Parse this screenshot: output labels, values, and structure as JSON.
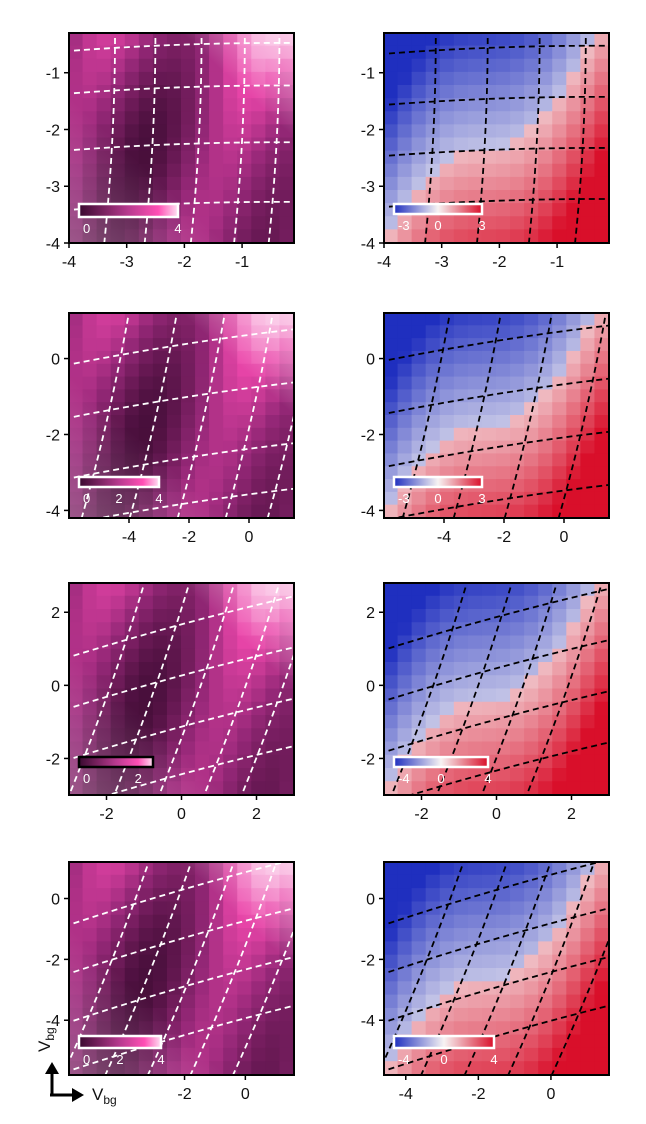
{
  "figure_axis_labels": {
    "horizontal": "V",
    "vertical": "V",
    "subscript": "bg"
  },
  "chart_data": [
    {
      "type": "heatmap",
      "colormap": "magenta",
      "xlim": [
        -4,
        -0.1
      ],
      "ylim": [
        -4,
        -0.3
      ],
      "xticks": [
        -4,
        -3,
        -2,
        -1
      ],
      "yticks": [
        -4,
        -3,
        -2,
        -1
      ],
      "colorbar": {
        "ticks": [
          "0",
          "4"
        ],
        "range": [
          0,
          4
        ]
      },
      "overlay": {
        "color": "#ffffff",
        "vertical_lines": [
          -3.3,
          -2.6,
          -1.8,
          -1.05,
          -0.45
        ],
        "horizontal_lines": [
          -0.55,
          -1.3,
          -2.3,
          -3.35
        ],
        "skew_x": 0.05,
        "skew_y": -0.04
      }
    },
    {
      "type": "heatmap",
      "colormap": "diverging",
      "xlim": [
        -4,
        -0.1
      ],
      "ylim": [
        -4,
        -0.3
      ],
      "xticks": [
        -4,
        -3,
        -2,
        -1
      ],
      "yticks": [
        -4,
        -3,
        -2,
        -1
      ],
      "colorbar": {
        "ticks": [
          "-3",
          "0",
          "3"
        ],
        "range": [
          -3,
          3
        ]
      },
      "overlay": {
        "color": "#000000",
        "vertical_lines": [
          -3.2,
          -2.3,
          -1.4,
          -0.6
        ],
        "horizontal_lines": [
          -0.6,
          -1.5,
          -2.4,
          -3.3
        ],
        "skew_x": 0.05,
        "skew_y": -0.04
      }
    },
    {
      "type": "heatmap",
      "colormap": "magenta",
      "xlim": [
        -6,
        1.5
      ],
      "ylim": [
        -4.2,
        1.2
      ],
      "xticks": [
        -4,
        -2,
        0
      ],
      "yticks": [
        -4,
        -2,
        0
      ],
      "colorbar": {
        "ticks": [
          "0",
          "2",
          "4"
        ],
        "range": [
          0,
          4
        ]
      },
      "overlay": {
        "color": "#ffffff",
        "vertical_lines": [
          -4.8,
          -3.2,
          -1.6,
          0,
          1.4
        ],
        "horizontal_lines": [
          0.3,
          -1.1,
          -2.7,
          -3.9
        ],
        "skew_x": 0.22,
        "skew_y": -0.18
      }
    },
    {
      "type": "heatmap",
      "colormap": "diverging",
      "xlim": [
        -6,
        1.5
      ],
      "ylim": [
        -4.2,
        1.2
      ],
      "xticks": [
        -4,
        -2,
        0
      ],
      "yticks": [
        -4,
        -2,
        0
      ],
      "colorbar": {
        "ticks": [
          "-3",
          "0",
          "3"
        ],
        "range": [
          -3,
          3
        ]
      },
      "overlay": {
        "color": "#000000",
        "vertical_lines": [
          -4.6,
          -2.9,
          -1.2,
          0.6
        ],
        "horizontal_lines": [
          0.4,
          -1.0,
          -2.4,
          -3.8
        ],
        "skew_x": 0.22,
        "skew_y": -0.18
      }
    },
    {
      "type": "heatmap",
      "colormap": "magenta",
      "xlim": [
        -3,
        3
      ],
      "ylim": [
        -3,
        2.8
      ],
      "xticks": [
        -2,
        0,
        2
      ],
      "yticks": [
        -2,
        0,
        2
      ],
      "colorbar": {
        "ticks": [
          "0",
          "2"
        ],
        "range": [
          0,
          2.5
        ]
      },
      "overlay": {
        "color": "#ffffff",
        "vertical_lines": [
          -2,
          -0.8,
          0.4,
          1.6,
          2.6
        ],
        "horizontal_lines": [
          1.6,
          0.2,
          -1.2,
          -2.5
        ],
        "skew_x": 0.35,
        "skew_y": -0.3
      }
    },
    {
      "type": "heatmap",
      "colormap": "diverging",
      "xlim": [
        -3,
        3
      ],
      "ylim": [
        -3,
        2.8
      ],
      "xticks": [
        -2,
        0,
        2
      ],
      "yticks": [
        -2,
        0,
        2
      ],
      "colorbar": {
        "ticks": [
          "-4",
          "0",
          "4"
        ],
        "range": [
          -4,
          4
        ]
      },
      "overlay": {
        "color": "#000000",
        "vertical_lines": [
          -1.8,
          -0.6,
          0.6,
          1.8
        ],
        "horizontal_lines": [
          1.8,
          0.4,
          -1.0,
          -2.4
        ],
        "skew_x": 0.35,
        "skew_y": -0.3
      }
    },
    {
      "type": "heatmap",
      "colormap": "magenta",
      "xlim": [
        -5.8,
        1.6
      ],
      "ylim": [
        -5.8,
        1.2
      ],
      "xticks": [
        -2,
        0
      ],
      "yticks": [
        -4,
        -2,
        0
      ],
      "colorbar": {
        "ticks": [
          "0",
          "2",
          "4"
        ],
        "range": [
          0,
          4
        ]
      },
      "overlay": {
        "color": "#ffffff",
        "vertical_lines": [
          -4.6,
          -3.2,
          -1.8,
          -0.4,
          1.0
        ],
        "horizontal_lines": [
          0.2,
          -1.4,
          -3.0,
          -4.6
        ],
        "skew_x": 0.4,
        "skew_y": -0.32
      }
    },
    {
      "type": "heatmap",
      "colormap": "diverging",
      "xlim": [
        -4.6,
        1.6
      ],
      "ylim": [
        -5.8,
        1.2
      ],
      "xticks": [
        -4,
        -2,
        0
      ],
      "yticks": [
        -4,
        -2,
        0
      ],
      "colorbar": {
        "ticks": [
          "-4",
          "0",
          "4"
        ],
        "range": [
          -4,
          4
        ]
      },
      "overlay": {
        "color": "#000000",
        "vertical_lines": [
          -3.6,
          -2.4,
          -1.2,
          0,
          1.2
        ],
        "horizontal_lines": [
          0.2,
          -1.4,
          -3.0,
          -4.6
        ],
        "skew_x": 0.4,
        "skew_y": -0.32
      }
    }
  ]
}
